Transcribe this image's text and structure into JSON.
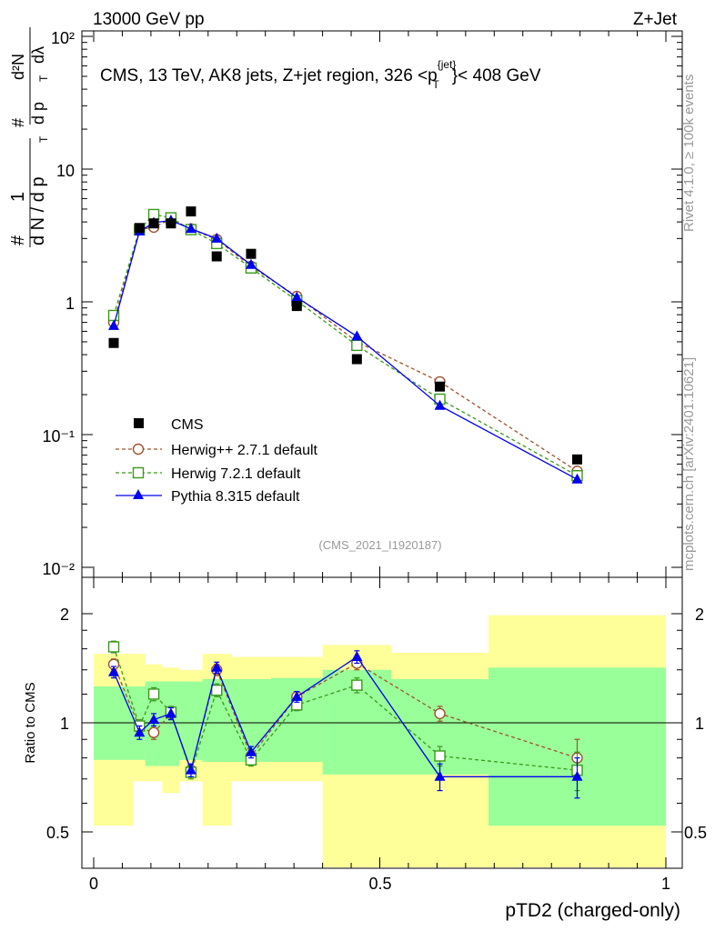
{
  "header": {
    "left": "13000 GeV pp",
    "right": "Z+Jet"
  },
  "side": {
    "rivet": "Rivet 4.1.0, ≥ 100k events",
    "mcplots": "mcplots.cern.ch [arXiv:2401.10621]"
  },
  "main_title": "CMS, 13 TeV, AK8 jets, Z+jet region, 326 <p",
  "main_title_sup": "{jet}",
  "main_title_sub": "T",
  "main_title_tail": "}< 408 GeV",
  "analysis_id": "(CMS_2021_I1920187)",
  "upper_ylabel": "# 1 / d N / d p_T  #  d²N / d p_T dλ",
  "upper_ylabel_parts": {
    "hash": "#",
    "one": "1",
    "den": "d N / d p",
    "T": "T",
    "hash2": "#",
    "d2N": "d²N",
    "dpT": "d p",
    "dlam": "dλ"
  },
  "ratio_ylabel": "Ratio to CMS",
  "xlabel": "pTD2 (charged-only)",
  "upper_ticks": [
    "10²",
    "10",
    "1",
    "10⁻¹",
    "10⁻²"
  ],
  "ratio_ticks_left": [
    "2",
    "1",
    "0.5"
  ],
  "ratio_ticks_right": [
    "2",
    "1",
    "0.5"
  ],
  "x_ticks": [
    "0",
    "0.5",
    "1"
  ],
  "legend": [
    {
      "label": "CMS",
      "color": "#000000",
      "marker": "square-filled",
      "line": "none"
    },
    {
      "label": "Herwig++ 2.7.1 default",
      "color": "#a0522d",
      "marker": "circle-open",
      "line": "dashed"
    },
    {
      "label": "Herwig 7.2.1 default",
      "color": "#3a9a1a",
      "marker": "square-open",
      "line": "dashed"
    },
    {
      "label": "Pythia 8.315 default",
      "color": "#0000ee",
      "marker": "triangle-filled",
      "line": "solid"
    }
  ],
  "chart_data": [
    {
      "type": "scatter",
      "panel": "main",
      "title": "CMS, 13 TeV, AK8 jets, Z+jet region, 326 <p_T^{jet}< 408 GeV",
      "xlabel": "pTD2 (charged-only)",
      "ylabel": "1/N dN/dlambda",
      "yscale": "log",
      "xlim": [
        0,
        1
      ],
      "ylim": [
        0.01,
        100
      ],
      "bin_edges": [
        0,
        0.07,
        0.09,
        0.12,
        0.15,
        0.19,
        0.24,
        0.31,
        0.4,
        0.52,
        0.69,
        1.0
      ],
      "x": [
        0.035,
        0.08,
        0.105,
        0.135,
        0.17,
        0.215,
        0.275,
        0.355,
        0.46,
        0.605,
        0.845
      ],
      "series": [
        {
          "name": "CMS",
          "values": [
            0.49,
            3.6,
            3.9,
            3.9,
            4.8,
            2.2,
            2.3,
            0.93,
            0.37,
            0.23,
            0.065
          ]
        },
        {
          "name": "Herwig++ 2.7.1 default",
          "values": [
            0.7,
            3.5,
            3.65,
            4.2,
            3.55,
            2.95,
            1.85,
            1.1,
            0.5,
            0.25,
            0.053
          ]
        },
        {
          "name": "Herwig 7.2.1 default",
          "values": [
            0.79,
            3.5,
            4.55,
            4.3,
            3.5,
            2.75,
            1.8,
            1.02,
            0.47,
            0.185,
            0.049
          ]
        },
        {
          "name": "Pythia 8.315 default",
          "values": [
            0.66,
            3.4,
            3.95,
            4.1,
            3.55,
            3.0,
            1.9,
            1.08,
            0.55,
            0.165,
            0.046
          ]
        }
      ]
    },
    {
      "type": "scatter",
      "panel": "ratio",
      "ylabel": "Ratio to CMS",
      "xlim": [
        0,
        1
      ],
      "ylim": [
        0.4,
        2.3
      ],
      "x": [
        0.035,
        0.08,
        0.105,
        0.135,
        0.17,
        0.215,
        0.275,
        0.355,
        0.46,
        0.605,
        0.845
      ],
      "bands": {
        "bin_edges": [
          0,
          0.07,
          0.09,
          0.12,
          0.15,
          0.19,
          0.24,
          0.31,
          0.4,
          0.52,
          0.69,
          1.0
        ],
        "inner_low": [
          0.79,
          0.79,
          0.76,
          0.76,
          0.79,
          0.78,
          0.78,
          0.78,
          0.72,
          0.72,
          0.52
        ],
        "inner_high": [
          1.26,
          1.26,
          1.3,
          1.3,
          1.3,
          1.32,
          1.32,
          1.33,
          1.4,
          1.32,
          1.42
        ],
        "outer_low": [
          0.52,
          0.69,
          0.69,
          0.64,
          0.69,
          0.52,
          0.69,
          0.69,
          0.32,
          0.36,
          0.36
        ],
        "outer_high": [
          1.55,
          1.55,
          1.45,
          1.42,
          1.4,
          1.55,
          1.52,
          1.52,
          1.64,
          1.56,
          1.98
        ]
      },
      "series": [
        {
          "name": "Herwig++ 2.7.1 default",
          "values": [
            1.45,
            0.97,
            0.94,
            1.06,
            0.74,
            1.4,
            0.81,
            1.18,
            1.46,
            1.06,
            0.8
          ],
          "errors": [
            0.05,
            0.04,
            0.04,
            0.04,
            0.03,
            0.05,
            0.03,
            0.04,
            0.06,
            0.05,
            0.1
          ]
        },
        {
          "name": "Herwig 7.2.1 default",
          "values": [
            1.62,
            0.98,
            1.2,
            1.07,
            0.73,
            1.23,
            0.79,
            1.12,
            1.27,
            0.81,
            0.74
          ],
          "errors": [
            0.06,
            0.04,
            0.05,
            0.04,
            0.03,
            0.05,
            0.03,
            0.04,
            0.06,
            0.05,
            0.09
          ]
        },
        {
          "name": "Pythia 8.315 default",
          "values": [
            1.38,
            0.94,
            1.02,
            1.06,
            0.74,
            1.42,
            0.83,
            1.18,
            1.52,
            0.71,
            0.71
          ],
          "errors": [
            0.05,
            0.04,
            0.04,
            0.04,
            0.03,
            0.05,
            0.03,
            0.04,
            0.06,
            0.06,
            0.09
          ]
        }
      ]
    }
  ]
}
